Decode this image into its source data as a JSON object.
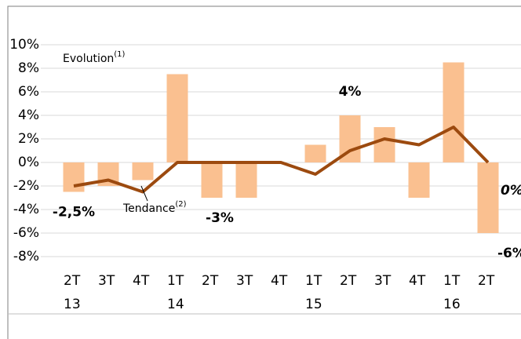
{
  "chart_data": {
    "type": "bar-line",
    "categories": [
      "2T 13",
      "3T",
      "4T",
      "1T 14",
      "2T",
      "3T",
      "4T",
      "1T 15",
      "2T",
      "3T",
      "4T",
      "1T 16",
      "2T"
    ],
    "series": [
      {
        "name": "Evolution",
        "name_sup": "(1)",
        "type": "bar",
        "color": "#fac090",
        "values": [
          -2.5,
          -2,
          -1.5,
          7.5,
          -3,
          -3,
          0,
          1.5,
          4,
          3,
          -3,
          8.5,
          -6
        ],
        "value_labels": [
          "-2,5%",
          null,
          null,
          null,
          "-3%",
          null,
          null,
          null,
          "4%",
          null,
          null,
          null,
          "-6%"
        ]
      },
      {
        "name": "Tendance",
        "name_sup": "(2)",
        "type": "line",
        "color": "#9c4a0f",
        "values": [
          -2,
          -1.5,
          -2.5,
          0,
          0,
          0,
          0,
          -1,
          1,
          2,
          1.5,
          3,
          0
        ],
        "value_labels": [
          null,
          null,
          null,
          null,
          null,
          null,
          null,
          null,
          null,
          null,
          null,
          null,
          "0%"
        ]
      }
    ],
    "ylim": [
      -8,
      10
    ],
    "yticks": [
      {
        "value": -8,
        "label": "-8%"
      },
      {
        "value": -6,
        "label": "-6%"
      },
      {
        "value": -4,
        "label": "-4%"
      },
      {
        "value": -2,
        "label": "-2%"
      },
      {
        "value": 0,
        "label": "0%"
      },
      {
        "value": 2,
        "label": "2%"
      },
      {
        "value": 4,
        "label": "4%"
      },
      {
        "value": 6,
        "label": "6%"
      },
      {
        "value": 8,
        "label": "8%"
      },
      {
        "value": 10,
        "label": "10%"
      }
    ],
    "grid": true
  }
}
